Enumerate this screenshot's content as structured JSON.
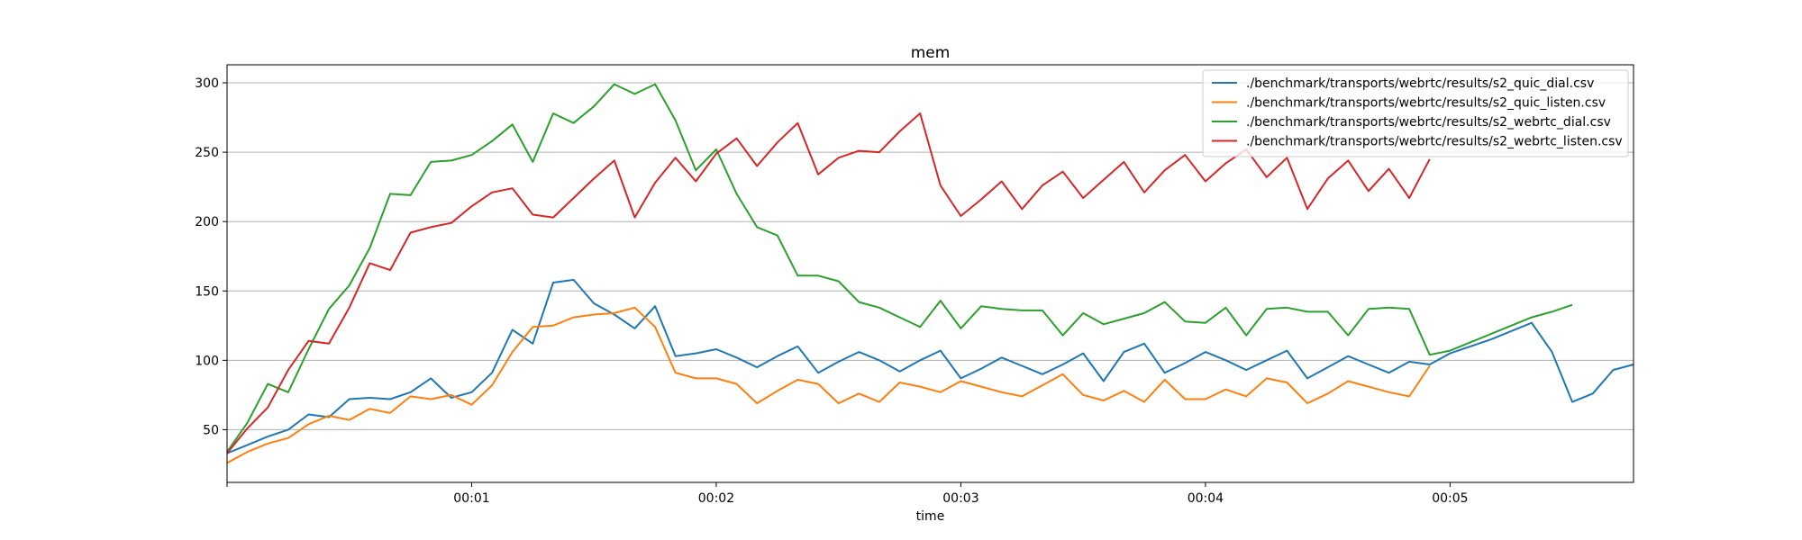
{
  "chart_data": {
    "type": "line",
    "title": "mem",
    "xlabel": "time",
    "ylabel": "",
    "xlim": [
      0,
      345
    ],
    "ylim": [
      12,
      313
    ],
    "x_ticks": [
      {
        "value": 60,
        "label": "00:01"
      },
      {
        "value": 120,
        "label": "00:02"
      },
      {
        "value": 180,
        "label": "00:03"
      },
      {
        "value": 240,
        "label": "00:04"
      },
      {
        "value": 300,
        "label": "00:05"
      }
    ],
    "y_ticks": [
      50,
      100,
      150,
      200,
      250,
      300
    ],
    "grid": "horizontal",
    "legend_position": "top-right",
    "series": [
      {
        "name": "./benchmark/transports/webrtc/results/s2_quic_dial.csv",
        "color": "#1f77b4",
        "points": [
          [
            0,
            33
          ],
          [
            5,
            39
          ],
          [
            10,
            45
          ],
          [
            15,
            50
          ],
          [
            20,
            61
          ],
          [
            25,
            59
          ],
          [
            30,
            72
          ],
          [
            35,
            73
          ],
          [
            40,
            72
          ],
          [
            45,
            77
          ],
          [
            50,
            87
          ],
          [
            55,
            73
          ],
          [
            60,
            77
          ],
          [
            65,
            91
          ],
          [
            70,
            122
          ],
          [
            75,
            112
          ],
          [
            80,
            156
          ],
          [
            85,
            158
          ],
          [
            90,
            141
          ],
          [
            95,
            133
          ],
          [
            100,
            123
          ],
          [
            105,
            139
          ],
          [
            110,
            103
          ],
          [
            115,
            105
          ],
          [
            120,
            108
          ],
          [
            125,
            102
          ],
          [
            130,
            95
          ],
          [
            135,
            103
          ],
          [
            140,
            110
          ],
          [
            145,
            91
          ],
          [
            150,
            99
          ],
          [
            155,
            106
          ],
          [
            160,
            100
          ],
          [
            165,
            92
          ],
          [
            170,
            100
          ],
          [
            175,
            107
          ],
          [
            180,
            87
          ],
          [
            185,
            94
          ],
          [
            190,
            102
          ],
          [
            195,
            96
          ],
          [
            200,
            90
          ],
          [
            205,
            97
          ],
          [
            210,
            105
          ],
          [
            215,
            85
          ],
          [
            220,
            106
          ],
          [
            225,
            112
          ],
          [
            230,
            91
          ],
          [
            235,
            98
          ],
          [
            240,
            106
          ],
          [
            245,
            100
          ],
          [
            250,
            93
          ],
          [
            255,
            100
          ],
          [
            260,
            107
          ],
          [
            265,
            87
          ],
          [
            270,
            95
          ],
          [
            275,
            103
          ],
          [
            280,
            97
          ],
          [
            285,
            91
          ],
          [
            290,
            99
          ],
          [
            295,
            97
          ],
          [
            300,
            105
          ],
          [
            310,
            115
          ],
          [
            320,
            127
          ],
          [
            325,
            106
          ],
          [
            330,
            70
          ],
          [
            335,
            76
          ],
          [
            340,
            93
          ],
          [
            345,
            97
          ]
        ]
      },
      {
        "name": "./benchmark/transports/webrtc/results/s2_quic_listen.csv",
        "color": "#ff7f0e",
        "points": [
          [
            0,
            26
          ],
          [
            5,
            34
          ],
          [
            10,
            40
          ],
          [
            15,
            44
          ],
          [
            20,
            54
          ],
          [
            25,
            60
          ],
          [
            30,
            57
          ],
          [
            35,
            65
          ],
          [
            40,
            62
          ],
          [
            45,
            74
          ],
          [
            50,
            72
          ],
          [
            55,
            75
          ],
          [
            60,
            68
          ],
          [
            65,
            82
          ],
          [
            70,
            106
          ],
          [
            75,
            124
          ],
          [
            80,
            125
          ],
          [
            85,
            131
          ],
          [
            90,
            133
          ],
          [
            95,
            134
          ],
          [
            100,
            138
          ],
          [
            105,
            124
          ],
          [
            110,
            91
          ],
          [
            115,
            87
          ],
          [
            120,
            87
          ],
          [
            125,
            83
          ],
          [
            130,
            69
          ],
          [
            135,
            78
          ],
          [
            140,
            86
          ],
          [
            145,
            83
          ],
          [
            150,
            69
          ],
          [
            155,
            76
          ],
          [
            160,
            70
          ],
          [
            165,
            84
          ],
          [
            170,
            81
          ],
          [
            175,
            77
          ],
          [
            180,
            85
          ],
          [
            185,
            81
          ],
          [
            190,
            77
          ],
          [
            195,
            74
          ],
          [
            200,
            82
          ],
          [
            205,
            90
          ],
          [
            210,
            75
          ],
          [
            215,
            71
          ],
          [
            220,
            78
          ],
          [
            225,
            70
          ],
          [
            230,
            86
          ],
          [
            235,
            72
          ],
          [
            240,
            72
          ],
          [
            245,
            79
          ],
          [
            250,
            74
          ],
          [
            255,
            87
          ],
          [
            260,
            84
          ],
          [
            265,
            69
          ],
          [
            270,
            76
          ],
          [
            275,
            85
          ],
          [
            280,
            81
          ],
          [
            285,
            77
          ],
          [
            290,
            74
          ],
          [
            295,
            96
          ]
        ]
      },
      {
        "name": "./benchmark/transports/webrtc/results/s2_webrtc_dial.csv",
        "color": "#2ca02c",
        "points": [
          [
            0,
            34
          ],
          [
            5,
            55
          ],
          [
            10,
            83
          ],
          [
            15,
            77
          ],
          [
            20,
            108
          ],
          [
            25,
            137
          ],
          [
            30,
            154
          ],
          [
            35,
            181
          ],
          [
            40,
            220
          ],
          [
            45,
            219
          ],
          [
            50,
            243
          ],
          [
            55,
            244
          ],
          [
            60,
            248
          ],
          [
            65,
            258
          ],
          [
            70,
            270
          ],
          [
            75,
            243
          ],
          [
            80,
            278
          ],
          [
            85,
            271
          ],
          [
            90,
            283
          ],
          [
            95,
            299
          ],
          [
            100,
            292
          ],
          [
            105,
            299
          ],
          [
            110,
            273
          ],
          [
            115,
            237
          ],
          [
            120,
            252
          ],
          [
            125,
            220
          ],
          [
            130,
            196
          ],
          [
            135,
            190
          ],
          [
            140,
            161
          ],
          [
            145,
            161
          ],
          [
            150,
            157
          ],
          [
            155,
            142
          ],
          [
            160,
            138
          ],
          [
            165,
            131
          ],
          [
            170,
            124
          ],
          [
            175,
            143
          ],
          [
            180,
            123
          ],
          [
            185,
            139
          ],
          [
            190,
            137
          ],
          [
            195,
            136
          ],
          [
            200,
            136
          ],
          [
            205,
            118
          ],
          [
            210,
            134
          ],
          [
            215,
            126
          ],
          [
            220,
            130
          ],
          [
            225,
            134
          ],
          [
            230,
            142
          ],
          [
            235,
            128
          ],
          [
            240,
            127
          ],
          [
            245,
            138
          ],
          [
            250,
            118
          ],
          [
            255,
            137
          ],
          [
            260,
            138
          ],
          [
            265,
            135
          ],
          [
            270,
            135
          ],
          [
            275,
            118
          ],
          [
            280,
            137
          ],
          [
            285,
            138
          ],
          [
            290,
            137
          ],
          [
            295,
            104
          ],
          [
            300,
            107
          ],
          [
            305,
            113
          ],
          [
            310,
            119
          ],
          [
            315,
            125
          ],
          [
            320,
            131
          ],
          [
            325,
            135
          ],
          [
            330,
            140
          ]
        ]
      },
      {
        "name": "./benchmark/transports/webrtc/results/s2_webrtc_listen.csv",
        "color": "#d62728",
        "points": [
          [
            0,
            33
          ],
          [
            5,
            51
          ],
          [
            10,
            66
          ],
          [
            15,
            93
          ],
          [
            20,
            114
          ],
          [
            25,
            112
          ],
          [
            30,
            138
          ],
          [
            35,
            170
          ],
          [
            40,
            165
          ],
          [
            45,
            192
          ],
          [
            50,
            196
          ],
          [
            55,
            199
          ],
          [
            60,
            211
          ],
          [
            65,
            221
          ],
          [
            70,
            224
          ],
          [
            75,
            205
          ],
          [
            80,
            203
          ],
          [
            85,
            217
          ],
          [
            90,
            231
          ],
          [
            95,
            244
          ],
          [
            100,
            203
          ],
          [
            105,
            228
          ],
          [
            110,
            246
          ],
          [
            115,
            229
          ],
          [
            120,
            249
          ],
          [
            125,
            260
          ],
          [
            130,
            240
          ],
          [
            135,
            257
          ],
          [
            140,
            271
          ],
          [
            145,
            234
          ],
          [
            150,
            246
          ],
          [
            155,
            251
          ],
          [
            160,
            250
          ],
          [
            165,
            265
          ],
          [
            170,
            278
          ],
          [
            175,
            226
          ],
          [
            180,
            204
          ],
          [
            185,
            216
          ],
          [
            190,
            229
          ],
          [
            195,
            209
          ],
          [
            200,
            226
          ],
          [
            205,
            236
          ],
          [
            210,
            217
          ],
          [
            215,
            230
          ],
          [
            220,
            243
          ],
          [
            225,
            221
          ],
          [
            230,
            237
          ],
          [
            235,
            248
          ],
          [
            240,
            229
          ],
          [
            245,
            242
          ],
          [
            250,
            252
          ],
          [
            255,
            232
          ],
          [
            260,
            246
          ],
          [
            265,
            209
          ],
          [
            270,
            231
          ],
          [
            275,
            244
          ],
          [
            280,
            222
          ],
          [
            285,
            238
          ],
          [
            290,
            217
          ],
          [
            295,
            245
          ]
        ]
      }
    ]
  }
}
